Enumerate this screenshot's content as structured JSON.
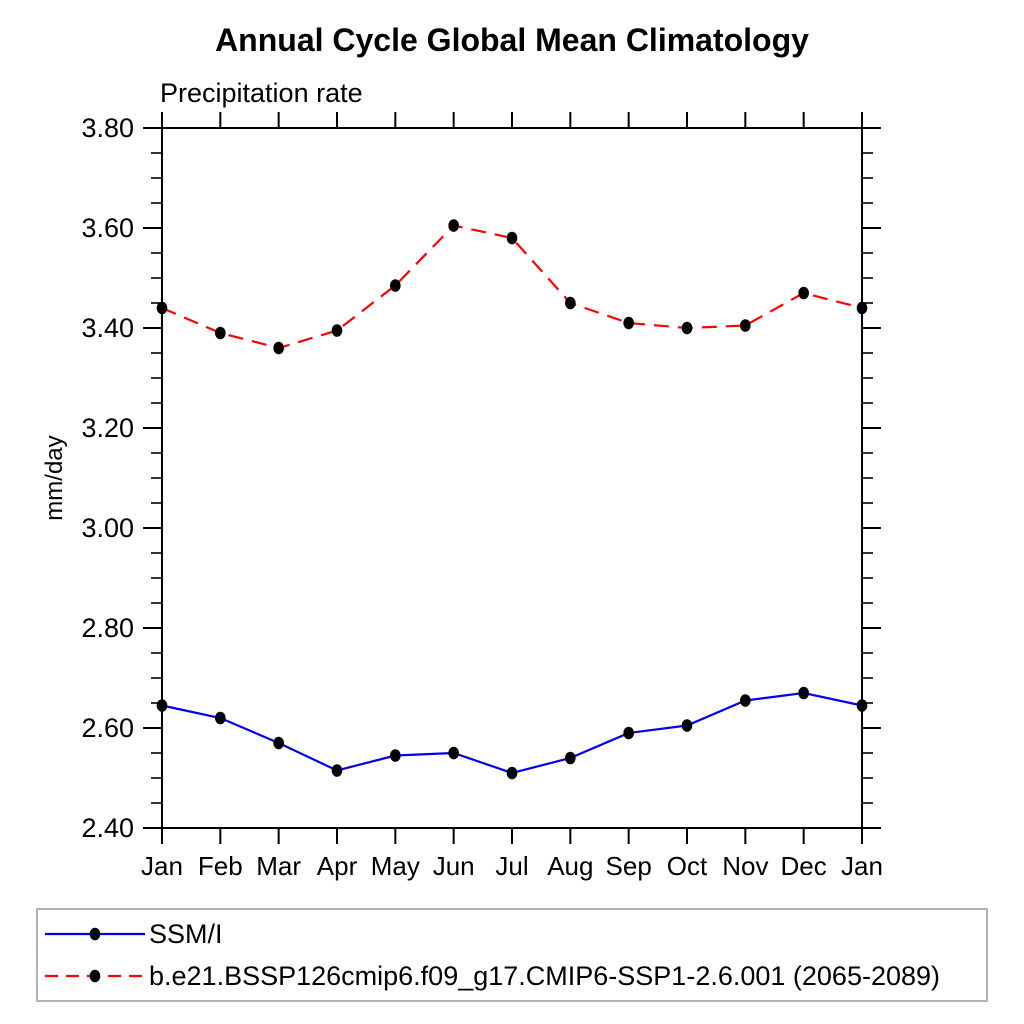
{
  "chart_data": {
    "type": "line",
    "title": "Annual Cycle Global Mean Climatology",
    "subtitle": "Precipitation rate",
    "ylabel": "mm/day",
    "categories": [
      "Jan",
      "Feb",
      "Mar",
      "Apr",
      "May",
      "Jun",
      "Jul",
      "Aug",
      "Sep",
      "Oct",
      "Nov",
      "Dec",
      "Jan"
    ],
    "ylim": [
      2.4,
      3.8
    ],
    "ytick_step": 0.2,
    "yminor_step": 0.05,
    "ytick_labels": [
      "2.40",
      "2.60",
      "2.80",
      "3.00",
      "3.20",
      "3.40",
      "3.60",
      "3.80"
    ],
    "grid": false,
    "frame": true,
    "tick_direction": "outward-all-four-sides",
    "legend_position": "bottom-box",
    "series": [
      {
        "name": "SSM/I",
        "color": "#0000ee",
        "line_style": "solid",
        "marker": "filled-black-dot",
        "values": [
          2.645,
          2.62,
          2.57,
          2.515,
          2.545,
          2.55,
          2.51,
          2.54,
          2.59,
          2.605,
          2.655,
          2.67,
          2.645
        ]
      },
      {
        "name": "b.e21.BSSP126cmip6.f09_g17.CMIP6-SSP1-2.6.001 (2065-2089)",
        "color": "#ff0000",
        "line_style": "dashed",
        "marker": "filled-black-dot",
        "values": [
          3.44,
          3.39,
          3.36,
          3.395,
          3.485,
          3.605,
          3.58,
          3.45,
          3.41,
          3.4,
          3.405,
          3.47,
          3.44
        ]
      }
    ],
    "marker_color": "#000000",
    "axis_color": "#000000",
    "text_color": "#000000",
    "legend_border_color": "#b3b3b3"
  }
}
